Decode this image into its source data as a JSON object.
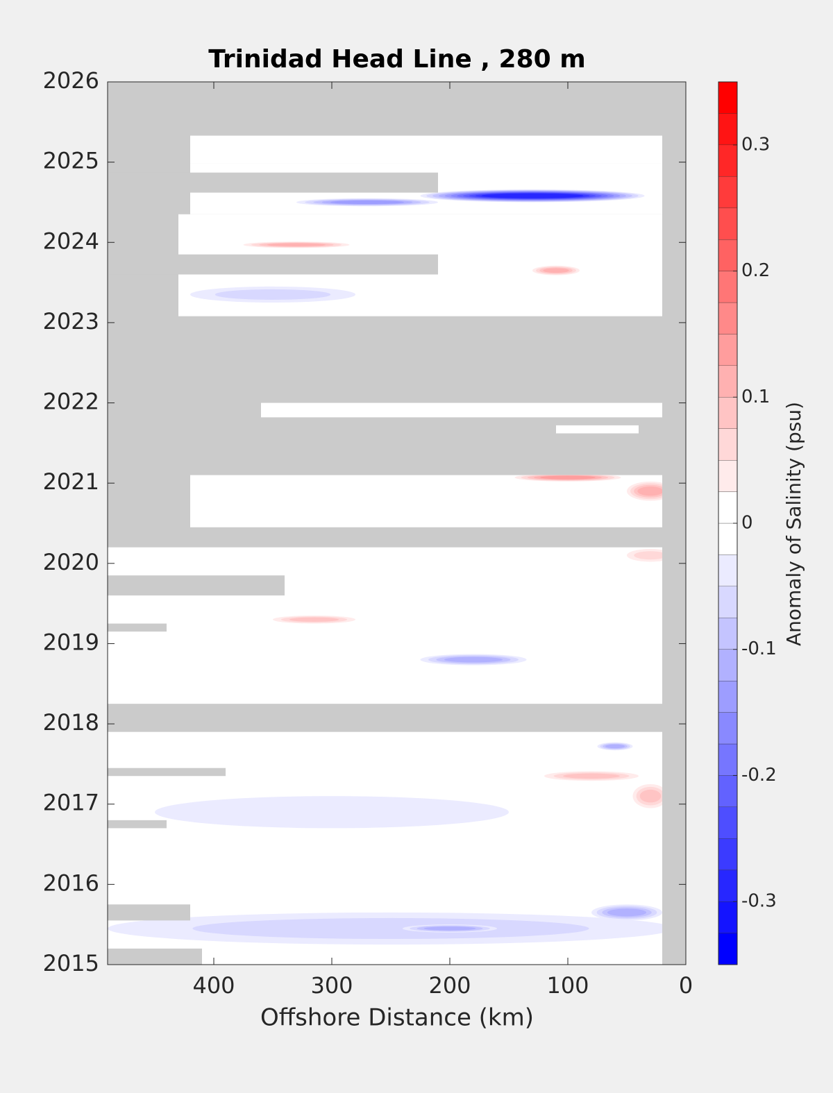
{
  "chart_data": {
    "type": "contour",
    "title": "Trinidad Head Line , 280 m",
    "xlabel": "Offshore Distance (km)",
    "colorbar_label": "Anomaly of Salinity (psu)",
    "xlim": [
      490,
      0
    ],
    "xticks": [
      400,
      300,
      200,
      100,
      0
    ],
    "ylim": [
      2015,
      2026
    ],
    "yticks": [
      2015,
      2016,
      2017,
      2018,
      2019,
      2020,
      2021,
      2022,
      2023,
      2024,
      2025,
      2026
    ],
    "clim": [
      -0.35,
      0.35
    ],
    "cstep": 0.025,
    "cticks": [
      -0.3,
      -0.2,
      -0.1,
      0,
      0.1,
      0.2,
      0.3
    ],
    "nodata_color": "#cbcbcb",
    "coverage": [
      {
        "x": [
          420,
          20
        ],
        "y": [
          2024.98,
          2025.33
        ]
      },
      {
        "x": [
          420,
          20
        ],
        "y": [
          2024.35,
          2024.98
        ]
      },
      {
        "x": [
          430,
          20
        ],
        "y": [
          2023.08,
          2024.35
        ]
      },
      {
        "x": [
          360,
          20
        ],
        "y": [
          2021.82,
          2022.0
        ]
      },
      {
        "x": [
          110,
          40
        ],
        "y": [
          2021.62,
          2021.72
        ]
      },
      {
        "x": [
          420,
          20
        ],
        "y": [
          2020.45,
          2021.1
        ]
      },
      {
        "x": [
          490,
          20
        ],
        "y": [
          2018.25,
          2020.2
        ]
      },
      {
        "x": [
          490,
          20
        ],
        "y": [
          2015,
          2017.9
        ]
      }
    ],
    "gaps": [
      {
        "x": [
          490,
          340
        ],
        "y": [
          2019.6,
          2019.85
        ]
      },
      {
        "x": [
          490,
          440
        ],
        "y": [
          2019.15,
          2019.25
        ]
      },
      {
        "x": [
          490,
          210
        ],
        "y": [
          2024.62,
          2024.87
        ]
      },
      {
        "x": [
          490,
          210
        ],
        "y": [
          2023.6,
          2023.85
        ]
      },
      {
        "x": [
          490,
          420
        ],
        "y": [
          2015.55,
          2015.75
        ]
      },
      {
        "x": [
          490,
          410
        ],
        "y": [
          2015,
          2015.2
        ]
      },
      {
        "x": [
          490,
          440
        ],
        "y": [
          2016.7,
          2016.8
        ]
      },
      {
        "x": [
          490,
          390
        ],
        "y": [
          2017.35,
          2017.45
        ]
      }
    ],
    "anomalies": [
      {
        "x": 130,
        "y": 2024.58,
        "rx": 95,
        "ry": 0.08,
        "value": -0.3
      },
      {
        "x": 270,
        "y": 2024.5,
        "rx": 60,
        "ry": 0.05,
        "value": -0.15
      },
      {
        "x": 330,
        "y": 2023.97,
        "rx": 45,
        "ry": 0.04,
        "value": 0.1
      },
      {
        "x": 110,
        "y": 2023.65,
        "rx": 20,
        "ry": 0.06,
        "value": 0.1
      },
      {
        "x": 350,
        "y": 2023.35,
        "rx": 70,
        "ry": 0.1,
        "value": -0.06
      },
      {
        "x": 100,
        "y": 2021.07,
        "rx": 45,
        "ry": 0.05,
        "value": 0.15
      },
      {
        "x": 30,
        "y": 2020.9,
        "rx": 20,
        "ry": 0.12,
        "value": 0.1
      },
      {
        "x": 315,
        "y": 2019.3,
        "rx": 35,
        "ry": 0.05,
        "value": 0.08
      },
      {
        "x": 180,
        "y": 2018.8,
        "rx": 45,
        "ry": 0.07,
        "value": -0.12
      },
      {
        "x": 250,
        "y": 2015.45,
        "rx": 240,
        "ry": 0.2,
        "value": -0.05
      },
      {
        "x": 200,
        "y": 2015.45,
        "rx": 40,
        "ry": 0.05,
        "value": -0.1
      },
      {
        "x": 50,
        "y": 2015.65,
        "rx": 30,
        "ry": 0.1,
        "value": -0.1
      },
      {
        "x": 80,
        "y": 2017.35,
        "rx": 40,
        "ry": 0.06,
        "value": 0.08
      },
      {
        "x": 60,
        "y": 2017.72,
        "rx": 15,
        "ry": 0.05,
        "value": -0.12
      },
      {
        "x": 300,
        "y": 2016.9,
        "rx": 150,
        "ry": 0.2,
        "value": -0.04
      },
      {
        "x": 30,
        "y": 2020.1,
        "rx": 20,
        "ry": 0.08,
        "value": 0.07
      },
      {
        "x": 30,
        "y": 2017.1,
        "rx": 15,
        "ry": 0.15,
        "value": 0.08
      }
    ]
  }
}
